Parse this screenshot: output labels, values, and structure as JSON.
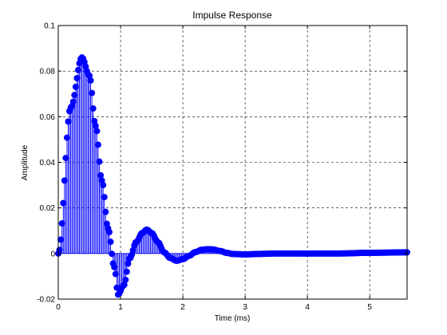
{
  "chart_data": {
    "type": "stem",
    "title": "Impulse Response",
    "xlabel": "Time (ms)",
    "ylabel": "Amplitude",
    "xlim": [
      0,
      5.6
    ],
    "ylim": [
      -0.02,
      0.1
    ],
    "xticks": [
      0,
      1,
      2,
      3,
      4,
      5
    ],
    "xtick_labels": [
      "0",
      "1",
      "2",
      "3",
      "4",
      "5"
    ],
    "yticks": [
      -0.02,
      0,
      0.02,
      0.04,
      0.06,
      0.08,
      0.1
    ],
    "ytick_labels": [
      "-0.02",
      "0",
      "0.02",
      "0.04",
      "0.06",
      "0.08",
      "0.1"
    ],
    "grid": true,
    "grid_style": "dashed",
    "marker": "filled-circle",
    "series": [
      {
        "color": "#0000ff",
        "sampling": "uniform samples from 0 to 5.6 ms",
        "x": [
          0,
          0.2,
          0.38,
          0.5,
          0.6,
          0.7,
          0.8,
          0.9,
          0.96,
          1.05,
          1.15,
          1.25,
          1.35,
          1.42,
          1.5,
          1.6,
          1.7,
          1.8,
          1.9,
          2.0,
          2.1,
          2.2,
          2.3,
          2.4,
          2.48,
          2.6,
          2.7,
          2.8,
          3.0,
          3.2,
          3.5,
          4.0,
          4.5,
          5.0,
          5.6
        ],
        "y": [
          0,
          0.064,
          0.086,
          0.078,
          0.056,
          0.032,
          0.011,
          -0.006,
          -0.018,
          -0.014,
          -0.002,
          0.005,
          0.009,
          0.0105,
          0.009,
          0.005,
          0.0005,
          -0.002,
          -0.0032,
          -0.0025,
          -0.001,
          0.0006,
          0.0016,
          0.0019,
          0.0018,
          0.0011,
          0.0003,
          -0.0002,
          -0.0004,
          -0.0002,
          0.0,
          0.0,
          0.0,
          0.0003,
          0.0005
        ]
      }
    ]
  }
}
